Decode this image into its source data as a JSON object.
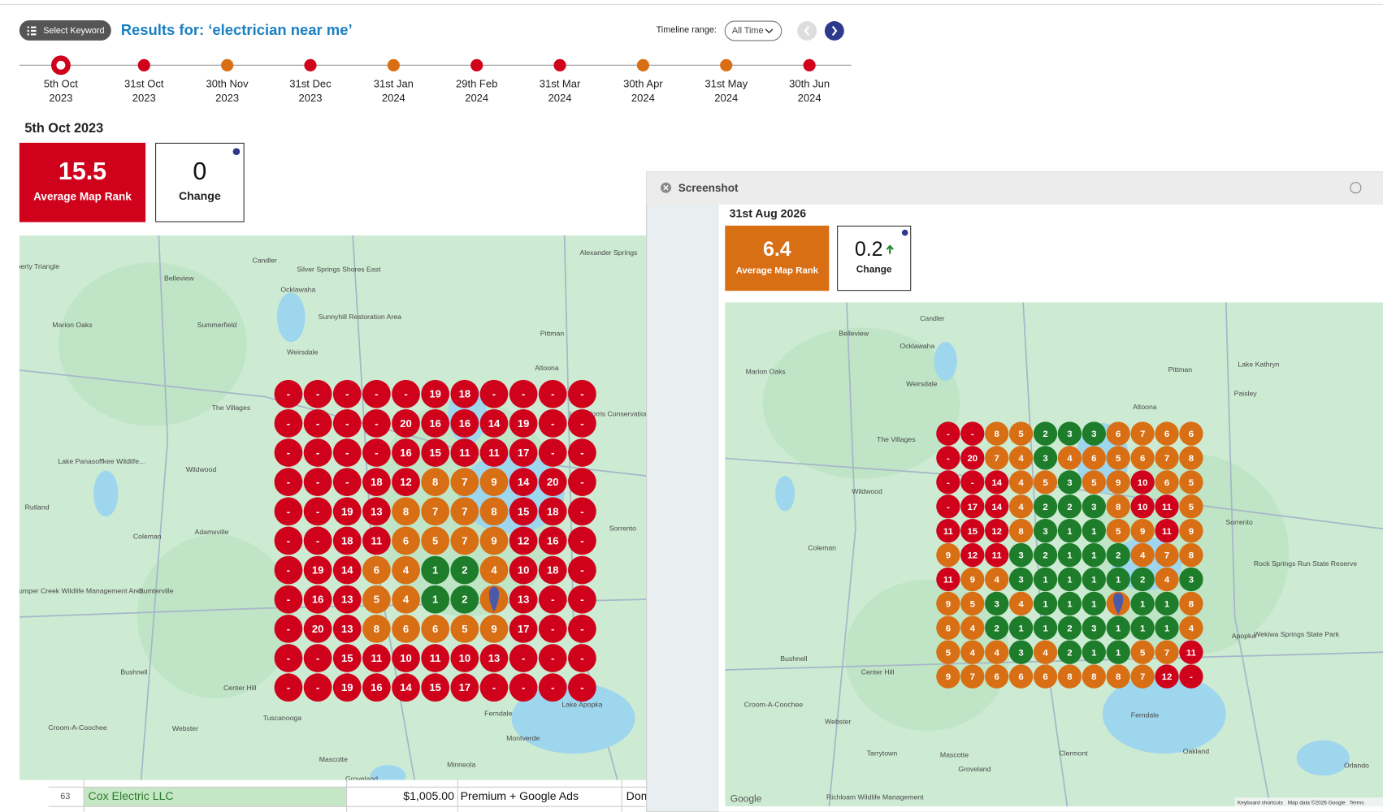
{
  "header": {
    "keyword_button": "Select Keyword",
    "title": "Results for: ‘electrician near me’",
    "timeline_label": "Timeline range:",
    "timeline_select": "All Time"
  },
  "timeline": [
    {
      "day": "5th Oct",
      "year": "2023",
      "color": "#d0021b",
      "selected": true
    },
    {
      "day": "31st Oct",
      "year": "2023",
      "color": "#d0021b",
      "selected": false
    },
    {
      "day": "30th Nov",
      "year": "2023",
      "color": "#d96f14",
      "selected": false
    },
    {
      "day": "31st Dec",
      "year": "2023",
      "color": "#d0021b",
      "selected": false
    },
    {
      "day": "31st Jan",
      "year": "2024",
      "color": "#d96f14",
      "selected": false
    },
    {
      "day": "29th Feb",
      "year": "2024",
      "color": "#d0021b",
      "selected": false
    },
    {
      "day": "31st Mar",
      "year": "2024",
      "color": "#d0021b",
      "selected": false
    },
    {
      "day": "30th Apr",
      "year": "2024",
      "color": "#d96f14",
      "selected": false
    },
    {
      "day": "31st May",
      "year": "2024",
      "color": "#d96f14",
      "selected": false
    },
    {
      "day": "30th Jun",
      "year": "2024",
      "color": "#d0021b",
      "selected": false
    }
  ],
  "left": {
    "date": "5th Oct 2023",
    "average_rank": 15.5,
    "average_rank_label": "Average Map Rank",
    "change": 0,
    "change_label": "Change",
    "color": "#d0021b",
    "grid": [
      [
        "-",
        "-",
        "-",
        "-",
        "-",
        19,
        18,
        "-",
        "-",
        "-",
        "-"
      ],
      [
        "-",
        "-",
        "-",
        "-",
        20,
        16,
        16,
        14,
        19,
        "-",
        "-"
      ],
      [
        "-",
        "-",
        "-",
        "-",
        16,
        15,
        11,
        11,
        17,
        "-",
        "-"
      ],
      [
        "-",
        "-",
        "-",
        18,
        12,
        8,
        7,
        9,
        14,
        20,
        "-"
      ],
      [
        "-",
        "-",
        19,
        13,
        8,
        7,
        7,
        8,
        15,
        18,
        "-"
      ],
      [
        "-",
        "-",
        18,
        11,
        6,
        5,
        7,
        9,
        12,
        16,
        "-"
      ],
      [
        "-",
        19,
        14,
        6,
        4,
        1,
        2,
        4,
        10,
        18,
        "-"
      ],
      [
        "-",
        16,
        13,
        5,
        4,
        1,
        2,
        null,
        13,
        "-",
        "-"
      ],
      [
        "-",
        20,
        13,
        8,
        6,
        6,
        5,
        9,
        17,
        "-",
        "-"
      ],
      [
        "-",
        "-",
        15,
        11,
        10,
        11,
        10,
        13,
        "-",
        "-",
        "-"
      ],
      [
        "-",
        "-",
        19,
        16,
        14,
        15,
        17,
        "-",
        "-",
        "-",
        "-"
      ]
    ]
  },
  "window": {
    "title": "Screenshot",
    "date": "31st Aug 2026",
    "average_rank": 6.4,
    "average_rank_label": "Average Map Rank",
    "change": 0.2,
    "change_label": "Change",
    "color": "#d96f14",
    "grid": [
      [
        "-",
        "-",
        8,
        5,
        2,
        3,
        3,
        6,
        7,
        6,
        6
      ],
      [
        "-",
        20,
        7,
        4,
        3,
        4,
        6,
        5,
        6,
        7,
        8
      ],
      [
        "-",
        "-",
        14,
        4,
        5,
        3,
        5,
        9,
        10,
        6,
        5
      ],
      [
        "-",
        17,
        14,
        4,
        2,
        2,
        3,
        8,
        10,
        11,
        5
      ],
      [
        11,
        15,
        12,
        8,
        3,
        1,
        1,
        5,
        9,
        11,
        9
      ],
      [
        9,
        12,
        11,
        3,
        2,
        1,
        1,
        2,
        4,
        7,
        8
      ],
      [
        11,
        9,
        4,
        3,
        1,
        1,
        1,
        1,
        2,
        4,
        3
      ],
      [
        9,
        5,
        3,
        4,
        1,
        1,
        1,
        null,
        1,
        1,
        8
      ],
      [
        6,
        4,
        2,
        1,
        1,
        2,
        3,
        1,
        1,
        1,
        4
      ],
      [
        5,
        4,
        4,
        3,
        4,
        2,
        1,
        1,
        5,
        7,
        11
      ],
      [
        9,
        7,
        6,
        6,
        6,
        8,
        8,
        8,
        7,
        12,
        "-"
      ]
    ]
  },
  "map_labels_left": [
    "Liberty Triangle",
    "Belleview",
    "Candler",
    "Silver Springs Shores East",
    "Alexander Springs",
    "Ocklawaha",
    "Marion Oaks",
    "Summerfield",
    "Sunnyhill Restoration Area",
    "Weirsdale",
    "Pittman",
    "Altoona",
    "The Villages",
    "Lake Norris Conservation Area",
    "Lake Panasoffkee Wildlife...",
    "Wildwood",
    "Rutland",
    "Adamsville",
    "Coleman",
    "Sorrento",
    "Jumper Creek Wildlife Management Area",
    "Sumterville",
    "Bushnell",
    "Center Hill",
    "Lake Apopka",
    "Ferndale",
    "Tuscanooga",
    "Croom-A-Coochee",
    "Webster",
    "Montverde",
    "Mascotte",
    "Minneola",
    "Groveland"
  ],
  "map_labels_right": [
    "Candler",
    "Belleview",
    "Ocklawaha",
    "Lake Kathryn",
    "Pittman",
    "Marion Oaks",
    "Weirsdale",
    "Paisley",
    "Altoona",
    "The Villages",
    "Wildwood",
    "Sorrento",
    "Coleman",
    "Rock Springs Run State Reserve",
    "Wekiwa Springs State Park",
    "Apopka",
    "Bushnell",
    "Center Hill",
    "Croom-A-Coochee",
    "Ferndale",
    "Webster",
    "Oakland",
    "Clermont",
    "Tarrytown",
    "Mascotte",
    "Orlando",
    "Groveland",
    "Richloam Wildlife Management"
  ],
  "map_footer": {
    "logo": "Google",
    "shortcuts": "Keyboard shortcuts",
    "data": "Map data ©2026 Google",
    "terms": "Terms"
  },
  "sheet": {
    "row": [
      "63",
      "Cox Electric LLC",
      "$1,005.00",
      "Premium + Google Ads",
      "Dom"
    ]
  }
}
